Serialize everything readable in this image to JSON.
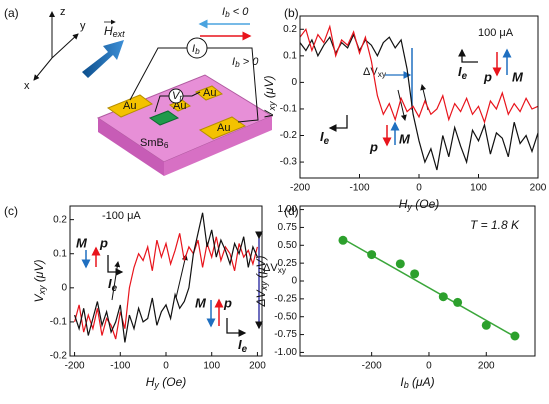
{
  "diagram": {
    "panel": "(a)",
    "axes": [
      "z",
      "y",
      "x"
    ],
    "field": [
      "H",
      "ext"
    ],
    "current_neg": [
      "I",
      "b",
      " < 0"
    ],
    "current_pos": [
      "I",
      "b",
      " > 0"
    ],
    "source": [
      "I",
      "b"
    ],
    "voltmeter": [
      "V",
      "t"
    ],
    "electrodes": [
      "Au",
      "Au",
      "Au",
      "Au"
    ],
    "sample": [
      "SmB",
      "6"
    ]
  },
  "chart_data": [
    {
      "type": "line",
      "panel": "(b)",
      "xlabel": [
        "H",
        "y",
        " (Oe)"
      ],
      "ylabel": [
        "V",
        "xy",
        " (μV)"
      ],
      "x": [
        -200,
        -190,
        -180,
        -170,
        -160,
        -150,
        -140,
        -130,
        -120,
        -110,
        -100,
        -90,
        -80,
        -70,
        -60,
        -50,
        -40,
        -30,
        -20,
        -10,
        0,
        10,
        20,
        30,
        40,
        50,
        60,
        70,
        80,
        90,
        100,
        110,
        120,
        130,
        140,
        150,
        160,
        170,
        180,
        190,
        200
      ],
      "series": [
        {
          "color": "#111111",
          "values": [
            0.15,
            0.12,
            0.16,
            0.1,
            0.14,
            0.17,
            0.11,
            0.15,
            0.13,
            0.18,
            0.12,
            0.16,
            0.14,
            0.1,
            0.15,
            0.17,
            0.13,
            0.16,
            0.05,
            -0.12,
            -0.22,
            -0.3,
            -0.25,
            -0.33,
            -0.2,
            -0.28,
            -0.17,
            -0.24,
            -0.3,
            -0.18,
            -0.22,
            -0.16,
            -0.27,
            -0.19,
            -0.21,
            -0.28,
            -0.15,
            -0.23,
            -0.2,
            -0.26,
            -0.19
          ]
        },
        {
          "color": "#e8141c",
          "values": [
            0.17,
            0.2,
            0.12,
            0.18,
            0.15,
            0.21,
            0.1,
            0.16,
            0.14,
            0.19,
            0.11,
            0.17,
            0.08,
            -0.05,
            -0.12,
            -0.08,
            -0.14,
            -0.06,
            -0.11,
            -0.09,
            -0.13,
            -0.07,
            -0.12,
            -0.1,
            -0.05,
            -0.14,
            -0.08,
            -0.11,
            -0.06,
            -0.12,
            -0.09,
            -0.15,
            -0.07,
            -0.1,
            -0.04,
            -0.12,
            -0.08,
            -0.11,
            -0.06,
            -0.1,
            -0.09
          ]
        }
      ],
      "xlim": [
        -200,
        200
      ],
      "xticks": [
        -200,
        -100,
        0,
        100,
        200
      ],
      "ylim": [
        -0.36,
        0.25
      ],
      "yticks": [
        -0.3,
        -0.2,
        -0.1,
        0,
        0.1,
        0.2
      ],
      "annotations": {
        "current": "100 μA",
        "labels": [
          "p",
          "M",
          "p",
          "M"
        ],
        "current_dir": [
          [
            "I",
            "e"
          ],
          [
            "I",
            "e"
          ]
        ],
        "delta": [
          "ΔV",
          "xy"
        ]
      }
    },
    {
      "type": "line",
      "panel": "(c)",
      "xlabel": [
        "H",
        "y",
        " (Oe)"
      ],
      "ylabel": [
        "V",
        "xy",
        " (μV)"
      ],
      "x": [
        -200,
        -190,
        -180,
        -170,
        -160,
        -150,
        -140,
        -130,
        -120,
        -110,
        -100,
        -90,
        -80,
        -70,
        -60,
        -50,
        -40,
        -30,
        -20,
        -10,
        0,
        10,
        20,
        30,
        40,
        50,
        60,
        70,
        80,
        90,
        100,
        110,
        120,
        130,
        140,
        150,
        160,
        170,
        180,
        190,
        200
      ],
      "series": [
        {
          "color": "#e8141c",
          "values": [
            -0.1,
            -0.05,
            -0.13,
            -0.08,
            -0.12,
            -0.06,
            -0.14,
            -0.09,
            -0.11,
            -0.15,
            -0.07,
            -0.12,
            0.0,
            0.06,
            0.1,
            0.08,
            0.12,
            0.05,
            0.14,
            0.09,
            0.13,
            0.07,
            0.11,
            0.16,
            0.08,
            0.12,
            0.1,
            0.14,
            0.06,
            0.13,
            0.09,
            0.15,
            0.08,
            0.12,
            0.1,
            0.05,
            0.13,
            0.09,
            0.11,
            0.07,
            0.12
          ]
        },
        {
          "color": "#111111",
          "values": [
            -0.08,
            -0.12,
            -0.06,
            -0.14,
            -0.09,
            -0.04,
            -0.11,
            -0.07,
            -0.13,
            -0.1,
            -0.05,
            -0.16,
            -0.08,
            -0.12,
            -0.06,
            -0.1,
            -0.09,
            -0.03,
            -0.11,
            -0.07,
            -0.05,
            -0.09,
            -0.02,
            -0.06,
            -0.04,
            0.0,
            0.1,
            0.16,
            0.22,
            0.12,
            0.17,
            0.09,
            0.14,
            0.11,
            0.07,
            0.13,
            0.1,
            0.15,
            0.06,
            0.12,
            0.09
          ]
        }
      ],
      "xlim": [
        -210,
        210
      ],
      "xticks": [
        -200,
        -100,
        0,
        100,
        200
      ],
      "ylim": [
        -0.2,
        0.24
      ],
      "yticks": [
        -0.2,
        -0.1,
        0,
        0.1,
        0.2
      ],
      "annotations": {
        "current": "-100 μA",
        "labels": [
          "M",
          "p",
          "M",
          "p"
        ],
        "current_dir": [
          [
            "I",
            "e"
          ],
          [
            "I",
            "e"
          ]
        ],
        "delta": [
          "ΔV",
          "xy"
        ]
      }
    },
    {
      "type": "scatter",
      "panel": "(d)",
      "xlabel": [
        "I",
        "b",
        " (μA)"
      ],
      "ylabel": [
        "ΔV",
        "xy",
        " (μV)"
      ],
      "x": [
        -300,
        -200,
        -100,
        -50,
        50,
        100,
        200,
        300
      ],
      "values": [
        0.57,
        0.37,
        0.24,
        0.1,
        -0.22,
        -0.3,
        -0.62,
        -0.77
      ],
      "color": "#2ca02c",
      "fit": {
        "x": [
          -300,
          300
        ],
        "values": [
          0.59,
          -0.78
        ],
        "color": "#3aa63a"
      },
      "xlim": [
        -450,
        370
      ],
      "xticks": [
        -200,
        0,
        200
      ],
      "ylim": [
        -1.05,
        1.05
      ],
      "yticks": [
        {
          "value": 1,
          "label": "1.00"
        },
        {
          "value": 0.75,
          "label": "0.75"
        },
        {
          "value": 0.5,
          "label": "0.50"
        },
        {
          "value": 0.25,
          "label": "0.25"
        },
        0,
        {
          "value": -0.25,
          "label": "-0.25"
        },
        {
          "value": -0.5,
          "label": "-0.50"
        },
        {
          "value": -0.75,
          "label": "-0.75"
        },
        {
          "value": -1,
          "label": "-1.00"
        }
      ],
      "annotations": {
        "temperature": "T = 1.8 K"
      }
    }
  ]
}
